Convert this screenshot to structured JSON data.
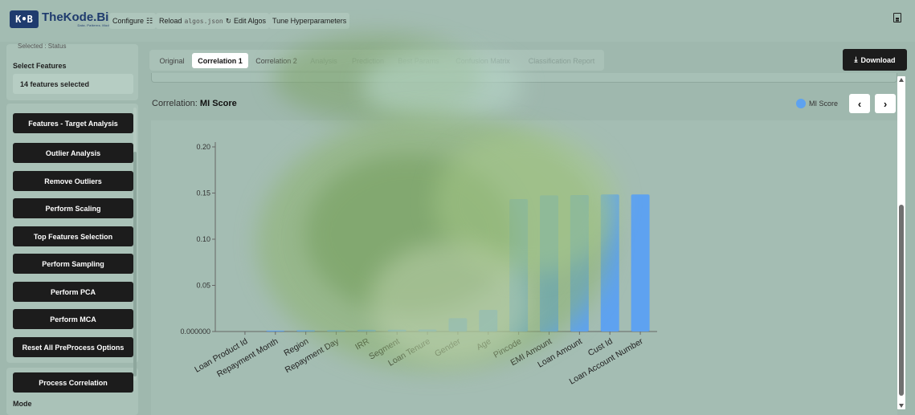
{
  "topbar": {
    "logo": "K•B",
    "brand_name": "TheKode.Biz",
    "brand_tagline": "Data. Patterns. Models.",
    "configure": "Configure",
    "reload_prefix": "Reload",
    "reload_file": "algos.json",
    "edit_algos": "Edit Algos",
    "tune": "Tune Hyperparameters"
  },
  "sidebar": {
    "prev_status": "Selected : Status",
    "select_features_title": "Select Features",
    "features_selected": "14 features selected",
    "buttons": [
      "Features - Target Analysis",
      "Outlier Analysis",
      "Remove Outliers",
      "Perform Scaling",
      "Top Features Selection",
      "Perform Sampling",
      "Perform PCA",
      "Perform MCA",
      "Reset All PreProcess Options"
    ],
    "process_correlation": "Process Correlation",
    "mode_label": "Mode"
  },
  "tabs": [
    "Original",
    "Correlation 1",
    "Correlation 2",
    "Analysis",
    "Prediction",
    "Best Params",
    "Confusion Matrix",
    "Classification Report"
  ],
  "active_tab": "Correlation 1",
  "download": "Download",
  "chart_header": {
    "prefix": "Correlation:",
    "metric": "MI Score"
  },
  "chart_data": {
    "type": "bar",
    "categories": [
      "Loan Product Id",
      "Repayment Month",
      "Region",
      "Repayment Day",
      "IRR",
      "Segment",
      "Loan Tenure",
      "Gender",
      "Age",
      "Pincode",
      "EMI Amount",
      "Loan Amount",
      "Cust Id",
      "Loan Account Number"
    ],
    "series": [
      {
        "name": "MI Score",
        "values": [
          0.0,
          0.001,
          0.0013,
          0.0014,
          0.0018,
          0.002,
          0.0022,
          0.0145,
          0.0235,
          0.1435,
          0.1475,
          0.1478,
          0.1485,
          0.1485
        ]
      }
    ],
    "yticks": [
      "0.000000",
      "0.05",
      "0.10",
      "0.15",
      "0.20"
    ],
    "ylim": [
      0,
      0.2
    ],
    "color": "#5ea2f0",
    "legend": "top-right"
  }
}
